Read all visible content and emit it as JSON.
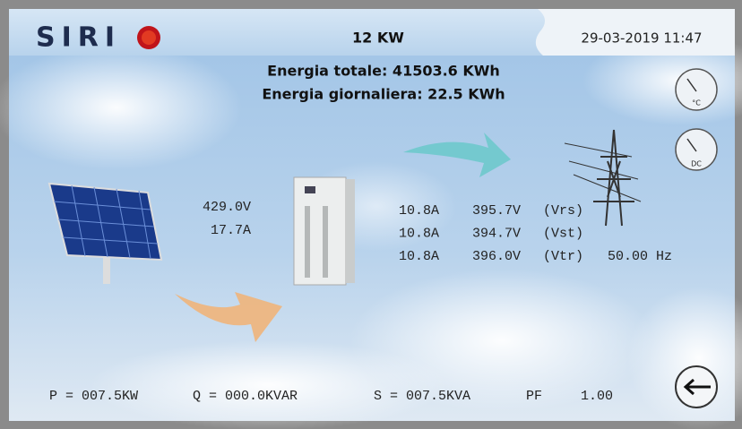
{
  "header": {
    "logo": "SIRI",
    "power": "12 KW",
    "datetime": "29-03-2019 11:47"
  },
  "energy": {
    "total": "Energia totale: 41503.6 KWh",
    "daily": "Energia giornaliera: 22.5 KWh"
  },
  "dc": {
    "voltage": "429.0V",
    "current": "17.7A"
  },
  "ac": {
    "phases": [
      {
        "current": "10.8A",
        "voltage": "395.7V",
        "label": "(Vrs)"
      },
      {
        "current": "10.8A",
        "voltage": "394.7V",
        "label": "(Vst)"
      },
      {
        "current": "10.8A",
        "voltage": "396.0V",
        "label": "(Vtr)"
      }
    ],
    "frequency": "50.00 Hz"
  },
  "gauges": [
    "°C",
    "DC"
  ],
  "totals": {
    "p": "P = 007.5KW",
    "q": "Q = 000.0KVAR",
    "s": "S = 007.5KVA",
    "pf_label": "PF",
    "pf_value": "1.00"
  }
}
